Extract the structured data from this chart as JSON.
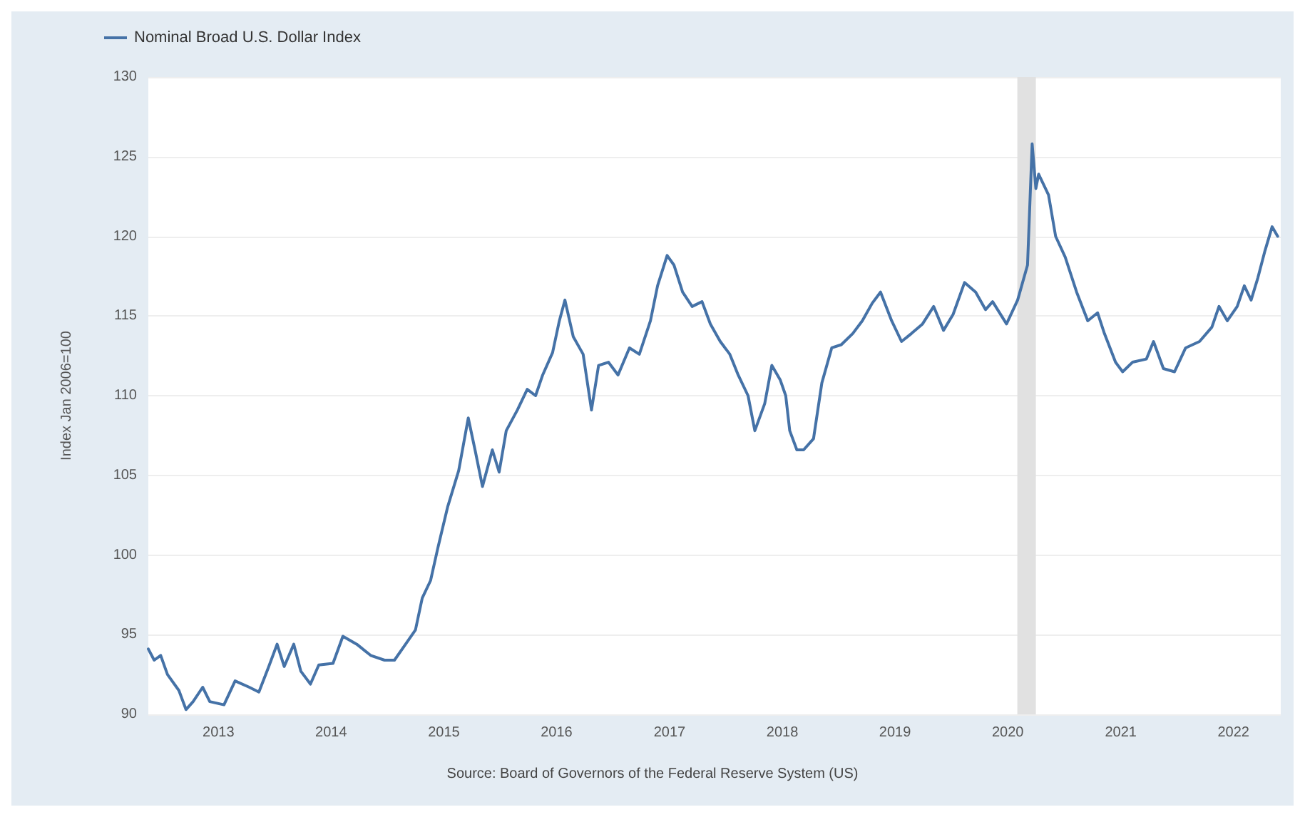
{
  "chart_data": {
    "type": "line",
    "ylabel": "Index Jan 2006=100",
    "annotations": [
      "Source: Board of Governors of the Federal Reserve System (US)"
    ],
    "x": [
      "2012-05-19",
      "2012-06-07",
      "2012-06-28",
      "2012-07-20",
      "2012-08-26",
      "2012-09-18",
      "2012-10-11",
      "2012-11-11",
      "2012-12-04",
      "2013-01-19",
      "2013-02-24",
      "2013-04-11",
      "2013-05-12",
      "2013-06-13",
      "2013-07-10",
      "2013-08-02",
      "2013-09-02",
      "2013-09-25",
      "2013-10-26",
      "2013-11-22",
      "2014-01-07",
      "2014-02-08",
      "2014-03-25",
      "2014-05-09",
      "2014-06-23",
      "2014-07-25",
      "2014-08-30",
      "2014-10-01",
      "2014-10-23",
      "2014-11-19",
      "2014-12-12",
      "2015-01-13",
      "2015-02-18",
      "2015-03-21",
      "2015-04-13",
      "2015-05-06",
      "2015-06-07",
      "2015-06-29",
      "2015-07-22",
      "2015-08-27",
      "2015-09-28",
      "2015-10-25",
      "2015-11-17",
      "2015-12-19",
      "2016-01-10",
      "2016-01-28",
      "2016-02-24",
      "2016-03-27",
      "2016-04-23",
      "2016-05-16",
      "2016-06-17",
      "2016-07-18",
      "2016-08-24",
      "2016-09-25",
      "2016-10-31",
      "2016-11-23",
      "2016-12-24",
      "2017-01-15",
      "2017-02-12",
      "2017-03-15",
      "2017-04-16",
      "2017-05-13",
      "2017-06-14",
      "2017-07-15",
      "2017-08-11",
      "2017-09-12",
      "2017-10-04",
      "2017-11-05",
      "2017-11-28",
      "2017-12-25",
      "2018-01-12",
      "2018-01-25",
      "2018-02-17",
      "2018-03-11",
      "2018-04-12",
      "2018-05-09",
      "2018-06-10",
      "2018-07-11",
      "2018-08-17",
      "2018-09-17",
      "2018-10-19",
      "2018-11-15",
      "2018-12-21",
      "2019-01-22",
      "2019-02-23",
      "2019-03-31",
      "2019-05-06",
      "2019-06-07",
      "2019-07-08",
      "2019-08-14",
      "2019-09-19",
      "2019-10-21",
      "2019-11-13",
      "2019-12-28",
      "2020-02-02",
      "2020-03-05",
      "2020-03-20",
      "2020-04-01",
      "2020-04-10",
      "2020-05-12",
      "2020-06-04",
      "2020-07-05",
      "2020-08-11",
      "2020-09-16",
      "2020-10-18",
      "2020-11-09",
      "2020-12-15",
      "2021-01-07",
      "2021-02-08",
      "2021-03-25",
      "2021-04-17",
      "2021-05-19",
      "2021-06-24",
      "2021-07-30",
      "2021-09-13",
      "2021-10-23",
      "2021-11-15",
      "2021-12-12",
      "2022-01-13",
      "2022-02-05",
      "2022-02-27",
      "2022-03-21",
      "2022-04-13",
      "2022-05-06",
      "2022-05-24"
    ],
    "series": [
      {
        "name": "Nominal Broad U.S. Dollar Index",
        "color": "#4572a7",
        "values": [
          94.1,
          93.4,
          93.7,
          92.5,
          91.5,
          90.3,
          90.8,
          91.7,
          90.8,
          90.6,
          92.1,
          91.7,
          91.4,
          93.0,
          94.4,
          93.0,
          94.4,
          92.7,
          91.9,
          93.1,
          93.2,
          94.9,
          94.4,
          93.7,
          93.4,
          93.4,
          94.4,
          95.3,
          97.3,
          98.4,
          100.4,
          103.0,
          105.3,
          108.6,
          106.5,
          104.3,
          106.6,
          105.2,
          107.8,
          109.1,
          110.4,
          110.0,
          111.3,
          112.7,
          114.7,
          116.0,
          113.7,
          112.6,
          109.1,
          111.9,
          112.1,
          111.3,
          113.0,
          112.6,
          114.7,
          116.9,
          118.8,
          118.2,
          116.5,
          115.6,
          115.9,
          114.5,
          113.4,
          112.6,
          111.3,
          110.0,
          107.8,
          109.5,
          111.9,
          111.0,
          110.0,
          107.8,
          106.6,
          106.6,
          107.3,
          110.8,
          113.0,
          113.2,
          113.9,
          114.7,
          115.8,
          116.5,
          114.7,
          113.4,
          113.9,
          114.5,
          115.6,
          114.1,
          115.1,
          117.1,
          116.5,
          115.4,
          115.9,
          114.5,
          116.0,
          118.2,
          125.8,
          123.0,
          123.9,
          122.6,
          120.0,
          118.7,
          116.5,
          114.7,
          115.2,
          113.9,
          112.1,
          111.5,
          112.1,
          112.3,
          113.4,
          111.7,
          111.5,
          113.0,
          113.4,
          114.3,
          115.6,
          114.7,
          115.6,
          116.9,
          116.0,
          117.4,
          119.1,
          120.6,
          120.0
        ]
      }
    ],
    "xlim": [
      "2012-05-19",
      "2022-06-03"
    ],
    "xticks": [
      {
        "value": "2013-01-01",
        "label": "2013"
      },
      {
        "value": "2014-01-01",
        "label": "2014"
      },
      {
        "value": "2015-01-01",
        "label": "2015"
      },
      {
        "value": "2016-01-01",
        "label": "2016"
      },
      {
        "value": "2017-01-01",
        "label": "2017"
      },
      {
        "value": "2018-01-01",
        "label": "2018"
      },
      {
        "value": "2019-01-01",
        "label": "2019"
      },
      {
        "value": "2020-01-01",
        "label": "2020"
      },
      {
        "value": "2021-01-01",
        "label": "2021"
      },
      {
        "value": "2022-01-01",
        "label": "2022"
      }
    ],
    "ylim": [
      90,
      130
    ],
    "yticks": [
      90,
      95,
      100,
      105,
      110,
      115,
      120,
      125,
      130
    ],
    "bands": [
      {
        "axis": "x",
        "from": "2020-02-01",
        "to": "2020-04-01",
        "color": "#e1e1e1"
      }
    ],
    "grid": "y",
    "legend": "top left",
    "line_style": "solid"
  }
}
